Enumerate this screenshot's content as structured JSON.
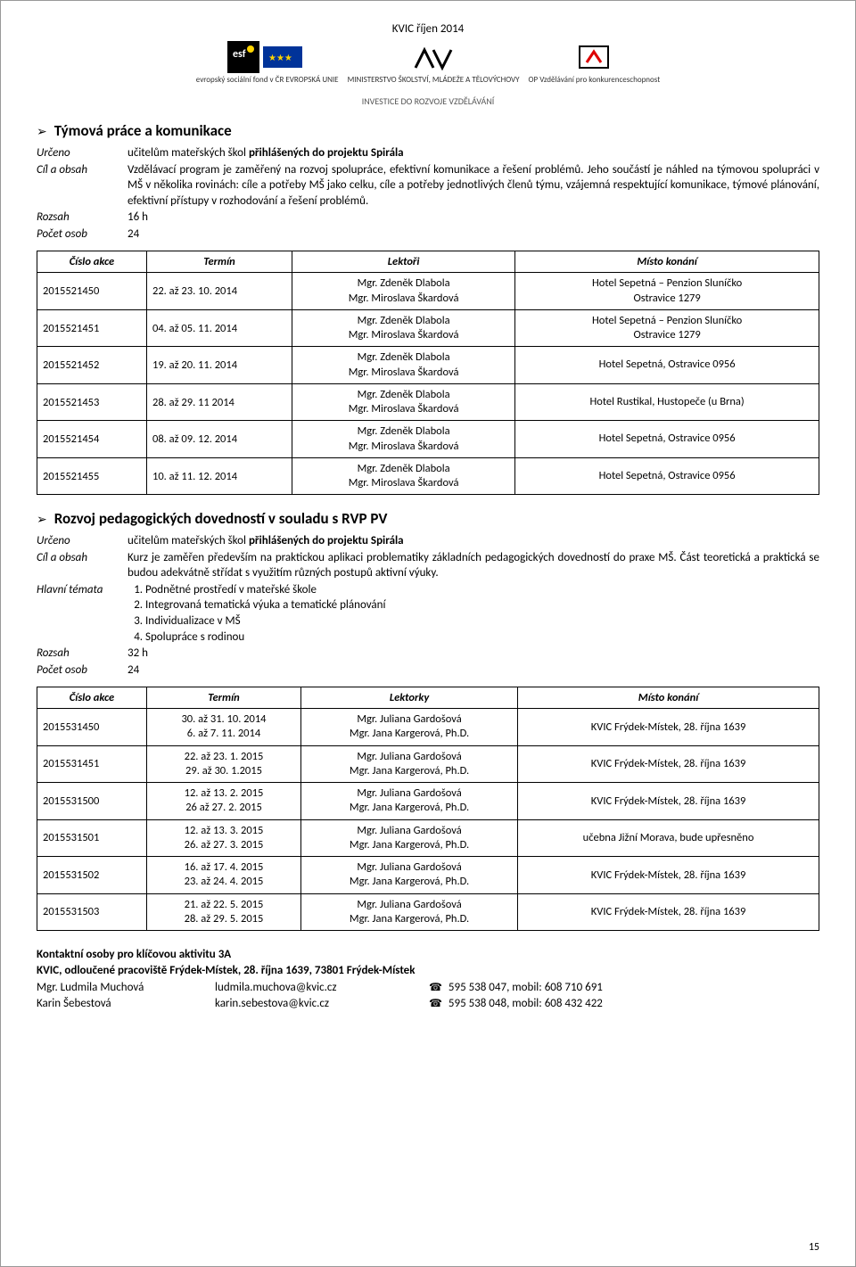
{
  "header": {
    "doc_title": "KVIC říjen 2014",
    "invest": "INVESTICE DO ROZVOJE VZDĚLÁVÁNÍ",
    "logos": [
      {
        "name": "esf-logo",
        "caption": "evropský sociální fond v ČR  EVROPSKÁ UNIE"
      },
      {
        "name": "eu-logo",
        "caption": ""
      },
      {
        "name": "msmt-logo",
        "caption": "MINISTERSTVO ŠKOLSTVÍ, MLÁDEŽE A TĚLOVÝCHOVY"
      },
      {
        "name": "op-logo",
        "caption": "OP Vzdělávání pro konkurenceschopnost"
      }
    ]
  },
  "section1": {
    "title": "Týmová práce a komunikace",
    "rows": {
      "urceno_label": "Určeno",
      "urceno_value_prefix": "učitelům mateřských škol ",
      "urceno_value_bold": "přihlášených do projektu Spirála",
      "cil_label": "Cíl a obsah",
      "cil_value": "Vzdělávací program je zaměřený na rozvoj spolupráce, efektivní komunikace a řešení problémů. Jeho součástí je náhled na týmovou spolupráci v MŠ v několika rovinách: cíle a potřeby MŠ jako celku, cíle a potřeby jednotlivých členů týmu, vzájemná respektující komunikace, týmové plánování, efektivní přístupy v rozhodování a řešení problémů.",
      "rozsah_label": "Rozsah",
      "rozsah_value": "16 h",
      "pocet_label": "Počet osob",
      "pocet_value": "24"
    },
    "table": {
      "headers": [
        "Číslo akce",
        "Termín",
        "Lektoři",
        "Místo konání"
      ],
      "col_widths": [
        "110px",
        "150px",
        "auto",
        "auto"
      ],
      "rows": [
        {
          "cislo": "2015521450",
          "termin": "22. až 23. 10. 2014",
          "lektor1": "Mgr. Zdeněk Dlabola",
          "lektor2": "Mgr. Miroslava Škardová",
          "misto1": "Hotel Sepetná – Penzion Sluníčko",
          "misto2": "Ostravice 1279"
        },
        {
          "cislo": "2015521451",
          "termin": "04. až 05. 11. 2014",
          "lektor1": "Mgr. Zdeněk Dlabola",
          "lektor2": "Mgr. Miroslava Škardová",
          "misto1": "Hotel Sepetná – Penzion Sluníčko",
          "misto2": "Ostravice 1279"
        },
        {
          "cislo": "2015521452",
          "termin": "19. až 20. 11. 2014",
          "lektor1": "Mgr. Zdeněk Dlabola",
          "lektor2": "Mgr. Miroslava Škardová",
          "misto1": "Hotel Sepetná, Ostravice 0956",
          "misto2": ""
        },
        {
          "cislo": "2015521453",
          "termin": "28. až 29. 11 2014",
          "lektor1": "Mgr. Zdeněk Dlabola",
          "lektor2": "Mgr. Miroslava Škardová",
          "misto1": "Hotel Rustikal, Hustopeče (u Brna)",
          "misto2": ""
        },
        {
          "cislo": "2015521454",
          "termin": "08. až 09. 12. 2014",
          "lektor1": "Mgr. Zdeněk Dlabola",
          "lektor2": "Mgr. Miroslava Škardová",
          "misto1": "Hotel Sepetná, Ostravice 0956",
          "misto2": ""
        },
        {
          "cislo": "2015521455",
          "termin": "10. až 11. 12. 2014",
          "lektor1": "Mgr. Zdeněk Dlabola",
          "lektor2": "Mgr. Miroslava Škardová",
          "misto1": "Hotel Sepetná, Ostravice 0956",
          "misto2": ""
        }
      ]
    }
  },
  "section2": {
    "title": "Rozvoj pedagogických dovedností v souladu s RVP PV",
    "rows": {
      "urceno_label": "Určeno",
      "urceno_value_prefix": "učitelům mateřských škol ",
      "urceno_value_bold": "přihlášených do projektu Spirála",
      "cil_label": "Cíl a obsah",
      "cil_value": "Kurz je zaměřen především na praktickou aplikaci problematiky základních pedagogických dovedností do praxe MŠ. Část teoretická a praktická se budou adekvátně střídat s využitím různých postupů aktivní výuky.",
      "temata_label": "Hlavní témata",
      "temata": [
        "Podnětné prostředí v mateřské škole",
        "Integrovaná tematická výuka a tematické plánování",
        "Individualizace v MŠ",
        "Spolupráce s rodinou"
      ],
      "rozsah_label": "Rozsah",
      "rozsah_value": "32 h",
      "pocet_label": "Počet osob",
      "pocet_value": "24"
    },
    "table": {
      "headers": [
        "Číslo akce",
        "Termín",
        "Lektorky",
        "Místo konání"
      ],
      "col_widths": [
        "110px",
        "160px",
        "auto",
        "auto"
      ],
      "rows": [
        {
          "cislo": "2015531450",
          "termin1": "30. až 31. 10. 2014",
          "termin2": "6. až 7. 11. 2014",
          "lektor1": "Mgr. Juliana Gardošová",
          "lektor2": "Mgr. Jana Kargerová, Ph.D.",
          "misto": "KVIC Frýdek-Místek, 28. října 1639"
        },
        {
          "cislo": "2015531451",
          "termin1": "22. až 23. 1. 2015",
          "termin2": "29. až 30. 1.2015",
          "lektor1": "Mgr. Juliana Gardošová",
          "lektor2": "Mgr. Jana Kargerová, Ph.D.",
          "misto": "KVIC Frýdek-Místek, 28. října 1639"
        },
        {
          "cislo": "2015531500",
          "termin1": "12. až 13. 2. 2015",
          "termin2": "26 až 27. 2. 2015",
          "lektor1": "Mgr. Juliana Gardošová",
          "lektor2": "Mgr. Jana Kargerová, Ph.D.",
          "misto": "KVIC Frýdek-Místek, 28. října 1639"
        },
        {
          "cislo": "2015531501",
          "termin1": "12. až 13. 3. 2015",
          "termin2": "26. až 27. 3. 2015",
          "lektor1": "Mgr. Juliana Gardošová",
          "lektor2": "Mgr. Jana Kargerová, Ph.D.",
          "misto": "učebna Jižní Morava, bude upřesněno"
        },
        {
          "cislo": "2015531502",
          "termin1": "16. až 17. 4. 2015",
          "termin2": "23. až 24. 4. 2015",
          "lektor1": "Mgr. Juliana Gardošová",
          "lektor2": "Mgr. Jana Kargerová, Ph.D.",
          "misto": "KVIC Frýdek-Místek, 28. října 1639"
        },
        {
          "cislo": "2015531503",
          "termin1": "21. až 22. 5. 2015",
          "termin2": "28. až 29. 5. 2015",
          "lektor1": "Mgr. Juliana Gardošová",
          "lektor2": "Mgr. Jana Kargerová, Ph.D.",
          "misto": "KVIC Frýdek-Místek, 28. října 1639"
        }
      ]
    }
  },
  "contact": {
    "heading": "Kontaktní osoby pro klíčovou aktivitu 3A",
    "address": "KVIC, odloučené pracoviště Frýdek-Místek, 28. října 1639, 73801 Frýdek-Místek",
    "people": [
      {
        "name": "Mgr. Ludmila Muchová",
        "email": "ludmila.muchova@kvic.cz",
        "phone": "595 538 047, mobil: 608 710 691"
      },
      {
        "name": "Karin Šebestová",
        "email": "karin.sebestova@kvic.cz",
        "phone": "595 538 048, mobil: 608 432 422"
      }
    ]
  },
  "page_number": "15"
}
